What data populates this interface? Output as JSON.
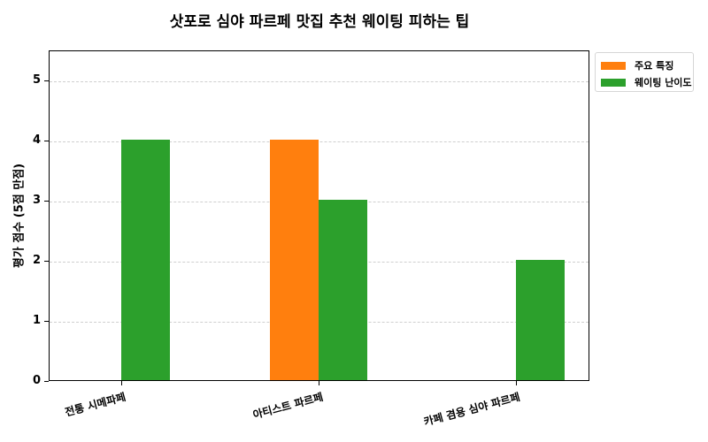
{
  "chart_data": {
    "type": "bar",
    "title": "삿포로 심야 파르페 맛집 추천 웨이팅 피하는 팁",
    "xlabel": "",
    "ylabel": "평가 점수 (5점 만점)",
    "categories": [
      "전통 시메파페",
      "아티스트 파르페",
      "카페 겸용 심야 파르페"
    ],
    "series": [
      {
        "name": "주요 특징",
        "color": "#ff7f0e",
        "values": [
          0,
          4,
          0
        ]
      },
      {
        "name": "웨이팅 난이도",
        "color": "#2ca02c",
        "values": [
          4,
          3,
          2
        ]
      }
    ],
    "ylim": [
      0,
      5.5
    ],
    "yticks": [
      "0",
      "1",
      "2",
      "3",
      "4",
      "5"
    ],
    "grid": true,
    "legend_position": "upper right outside"
  }
}
